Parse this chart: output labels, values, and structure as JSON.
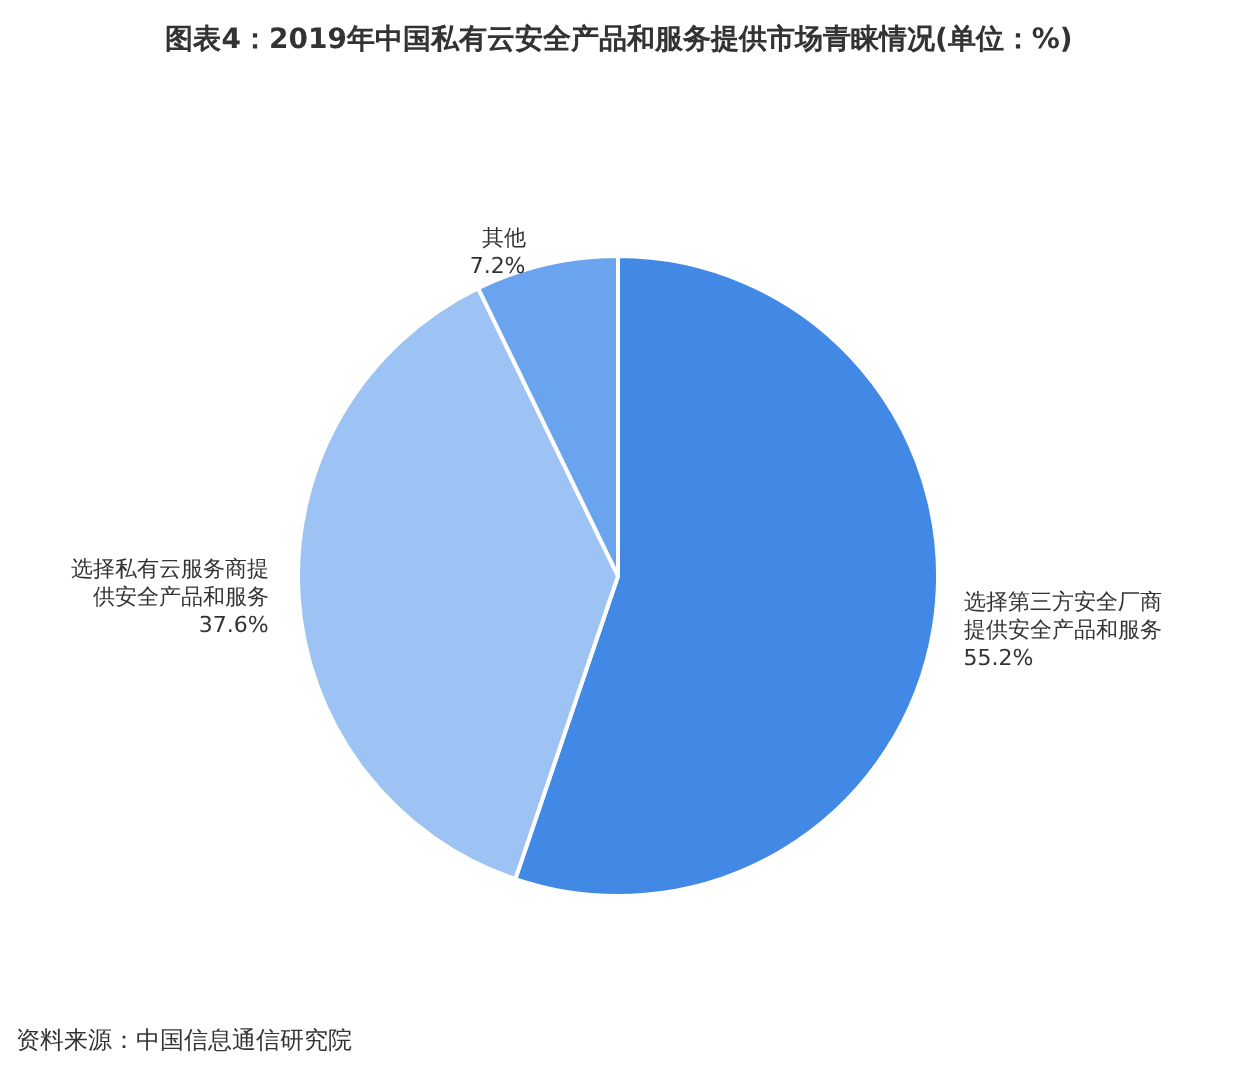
{
  "chart_data": {
    "type": "pie",
    "title": "图表4：2019年中国私有云安全产品和服务提供市场青睐情况(单位：%)",
    "categories": [
      "选择第三方安全厂商提供安全产品和服务",
      "选择私有云服务商提供安全产品和服务",
      "其他"
    ],
    "values": [
      55.2,
      37.6,
      7.2
    ],
    "colors": [
      "#4189e4",
      "#9dc3f5",
      "#6ba4ee"
    ],
    "value_labels": [
      "55.2%",
      "37.6%",
      "7.2%"
    ],
    "annotations": [
      "资料来源：中国信息通信研究院"
    ],
    "legend": false
  }
}
